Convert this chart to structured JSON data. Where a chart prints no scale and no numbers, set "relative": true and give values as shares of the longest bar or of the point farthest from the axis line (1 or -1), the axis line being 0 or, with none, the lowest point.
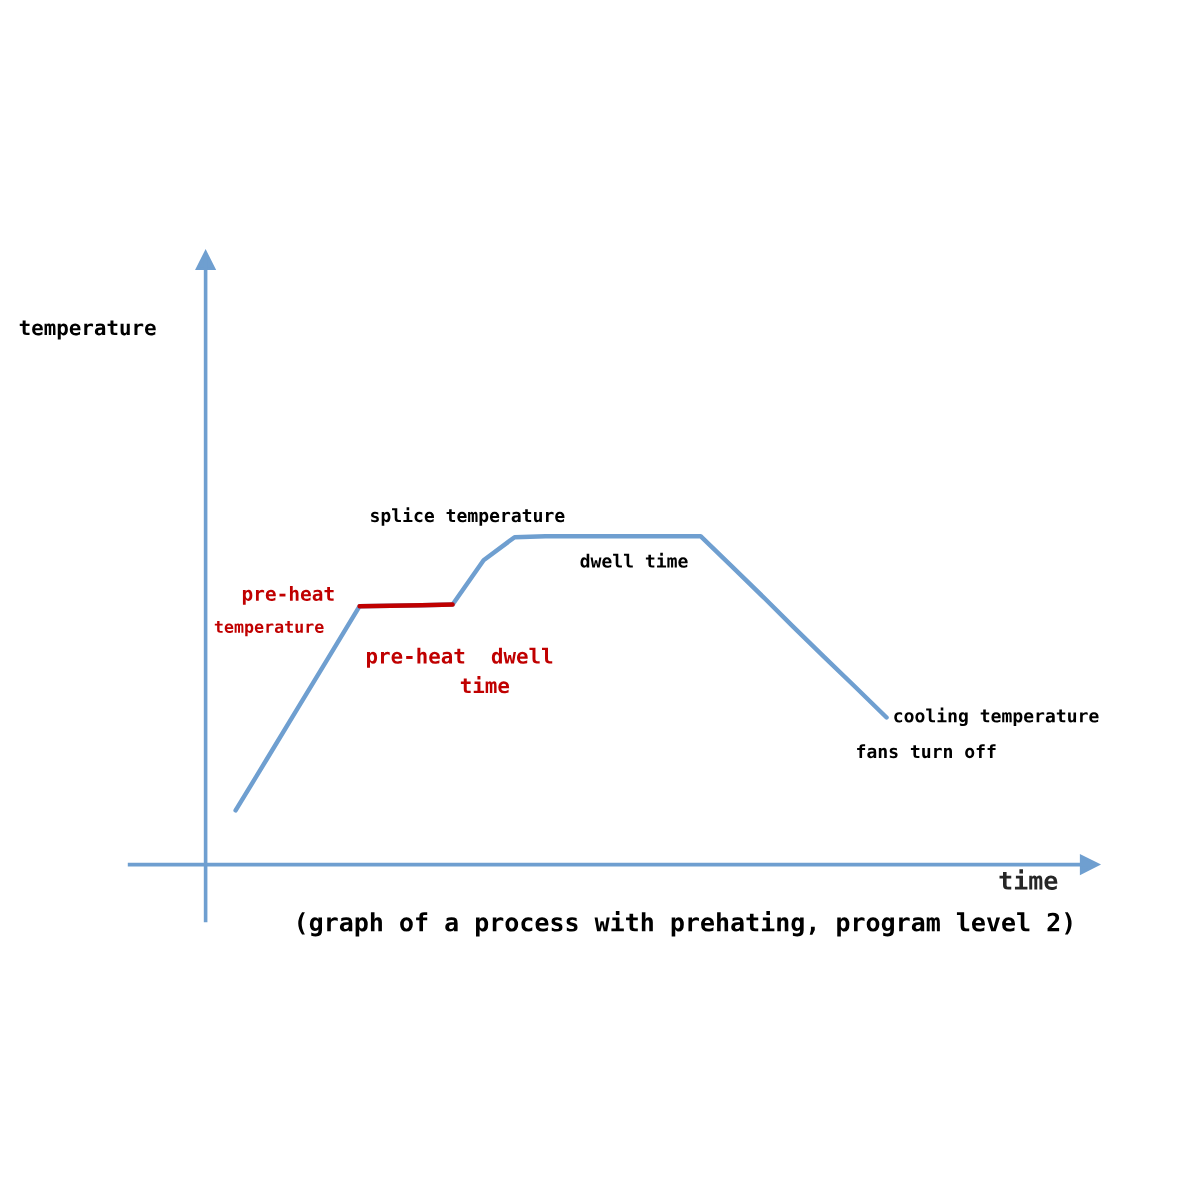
{
  "chart_data": {
    "type": "line",
    "relative": true,
    "xlabel": "time",
    "marker": "none",
    "line_style": "solid",
    "categories": [
      null,
      null,
      null,
      null,
      null,
      null,
      null,
      null,
      null,
      null,
      null,
      null,
      null,
      null,
      null,
      null,
      null,
      null,
      null,
      null,
      null,
      null
    ],
    "series": [
      {
        "color": "#6f9fd0",
        "values": [
          0.165,
          0.32,
          0.476,
          0.631,
          0.787,
          0.788,
          0.79,
          0.792,
          0.927,
          0.997,
          1,
          1,
          1,
          1,
          1,
          1,
          0.909,
          0.817,
          0.723,
          0.631,
          0.54,
          0.448
        ]
      },
      {
        "color": "#c00000",
        "values": [
          null,
          null,
          null,
          null,
          0.787,
          0.788,
          0.79,
          0.792,
          null,
          null,
          null,
          null,
          null,
          null,
          null,
          null,
          null,
          null,
          null,
          null,
          null,
          null
        ]
      }
    ],
    "annotations": [
      "temperature",
      "splice temperature",
      "dwell time",
      "pre-heat",
      "temperature",
      "pre-heat  dwell",
      "time",
      "cooling temperature",
      "fans turn off",
      "(graph of a process with prehating, program level 2)"
    ]
  }
}
